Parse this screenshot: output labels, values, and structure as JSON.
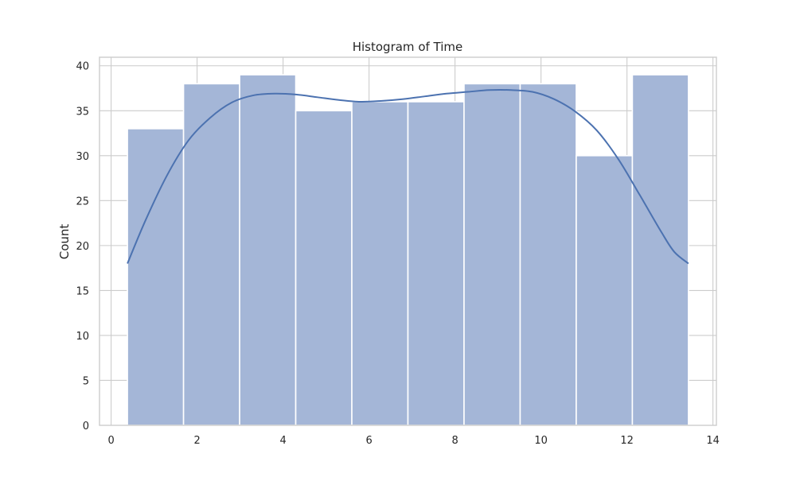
{
  "chart_data": {
    "type": "bar",
    "title": "Histogram of Time",
    "xlabel": "",
    "ylabel": "Count",
    "bin_edges": [
      0.38,
      1.685,
      2.99,
      4.295,
      5.6,
      6.905,
      8.21,
      9.515,
      10.82,
      12.125,
      13.43
    ],
    "values": [
      33,
      38,
      39,
      35,
      36,
      36,
      38,
      38,
      30,
      39
    ],
    "kde": {
      "x": [
        0.38,
        0.8,
        1.3,
        1.8,
        2.3,
        2.8,
        3.3,
        3.8,
        4.3,
        4.8,
        5.3,
        5.8,
        6.3,
        6.8,
        7.3,
        7.8,
        8.3,
        8.8,
        9.3,
        9.8,
        10.3,
        10.8,
        11.3,
        11.8,
        12.3,
        12.8,
        13.1,
        13.43
      ],
      "y": [
        18.0,
        22.8,
        27.8,
        31.7,
        34.2,
        35.9,
        36.7,
        36.9,
        36.8,
        36.5,
        36.2,
        36.0,
        36.1,
        36.3,
        36.6,
        36.9,
        37.1,
        37.3,
        37.3,
        37.1,
        36.3,
        34.9,
        32.8,
        29.6,
        25.6,
        21.5,
        19.3,
        18.0
      ]
    },
    "xlim": [
      -0.27,
      14.08
    ],
    "ylim": [
      0,
      40.95
    ],
    "xticks": [
      0,
      2,
      4,
      6,
      8,
      10,
      12,
      14
    ],
    "yticks": [
      0,
      5,
      10,
      15,
      20,
      25,
      30,
      35,
      40
    ],
    "grid": true,
    "colors": {
      "bar_fill": "#a4b6d7",
      "bar_edge": "#ffffff",
      "kde_line": "#4c72b0",
      "grid": "#cccccc",
      "spine": "#cccccc"
    }
  }
}
